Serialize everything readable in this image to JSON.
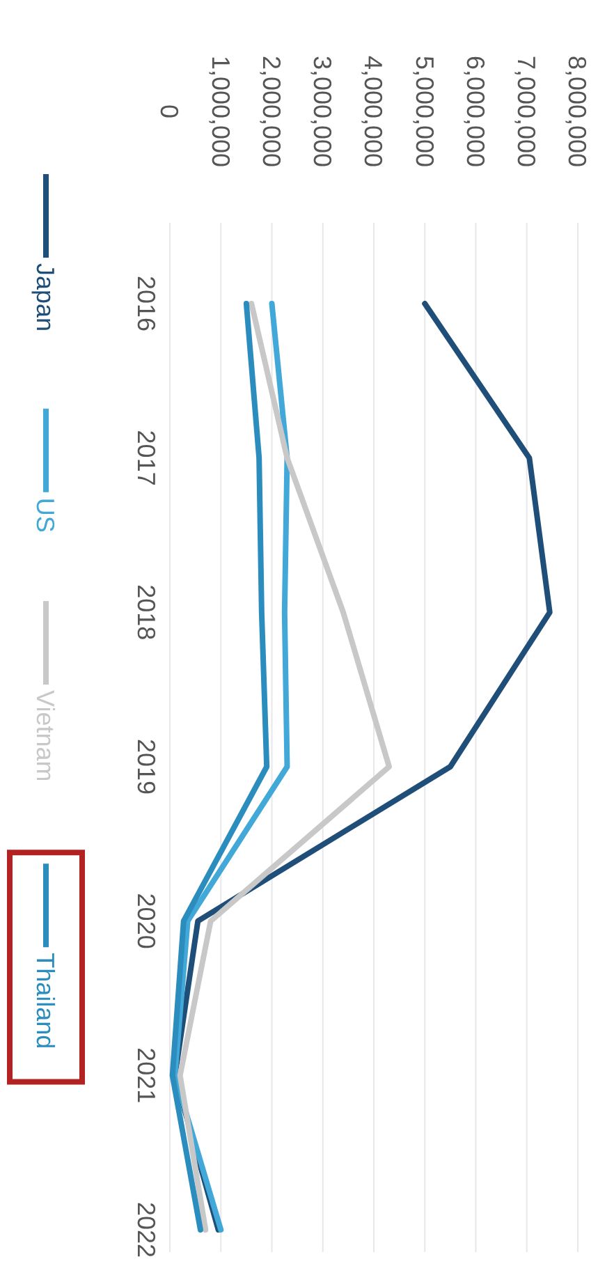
{
  "chart_data": {
    "type": "line",
    "categories": [
      "2016",
      "2017",
      "2018",
      "2019",
      "2020",
      "2021",
      "2022"
    ],
    "series": [
      {
        "name": "Japan",
        "color": "#1f4e79",
        "values": [
          5000000,
          7050000,
          7450000,
          5500000,
          550000,
          100000,
          950000
        ]
      },
      {
        "name": "US",
        "color": "#41a8d8",
        "values": [
          2000000,
          2300000,
          2250000,
          2300000,
          350000,
          100000,
          1000000
        ]
      },
      {
        "name": "Vietnam",
        "color": "#c8c8c8",
        "values": [
          1600000,
          2300000,
          3400000,
          4300000,
          800000,
          200000,
          700000
        ]
      },
      {
        "name": "Thailand",
        "color": "#2b8cbe",
        "values": [
          1500000,
          1750000,
          1800000,
          1900000,
          270000,
          50000,
          600000
        ]
      }
    ],
    "orientation": "horizontal",
    "xlim": [
      0,
      8000000
    ],
    "xticks": [
      {
        "value": 0,
        "label": "0"
      },
      {
        "value": 1000000,
        "label": "1,000,000"
      },
      {
        "value": 2000000,
        "label": "2,000,000"
      },
      {
        "value": 3000000,
        "label": "3,000,000"
      },
      {
        "value": 4000000,
        "label": "4,000,000"
      },
      {
        "value": 5000000,
        "label": "5,000,000"
      },
      {
        "value": 6000000,
        "label": "6,000,000"
      },
      {
        "value": 7000000,
        "label": "7,000,000"
      },
      {
        "value": 8000000,
        "label": "8,000,000"
      }
    ],
    "grid": "x",
    "legend": "left",
    "marker": "none",
    "line_style": "solid"
  }
}
